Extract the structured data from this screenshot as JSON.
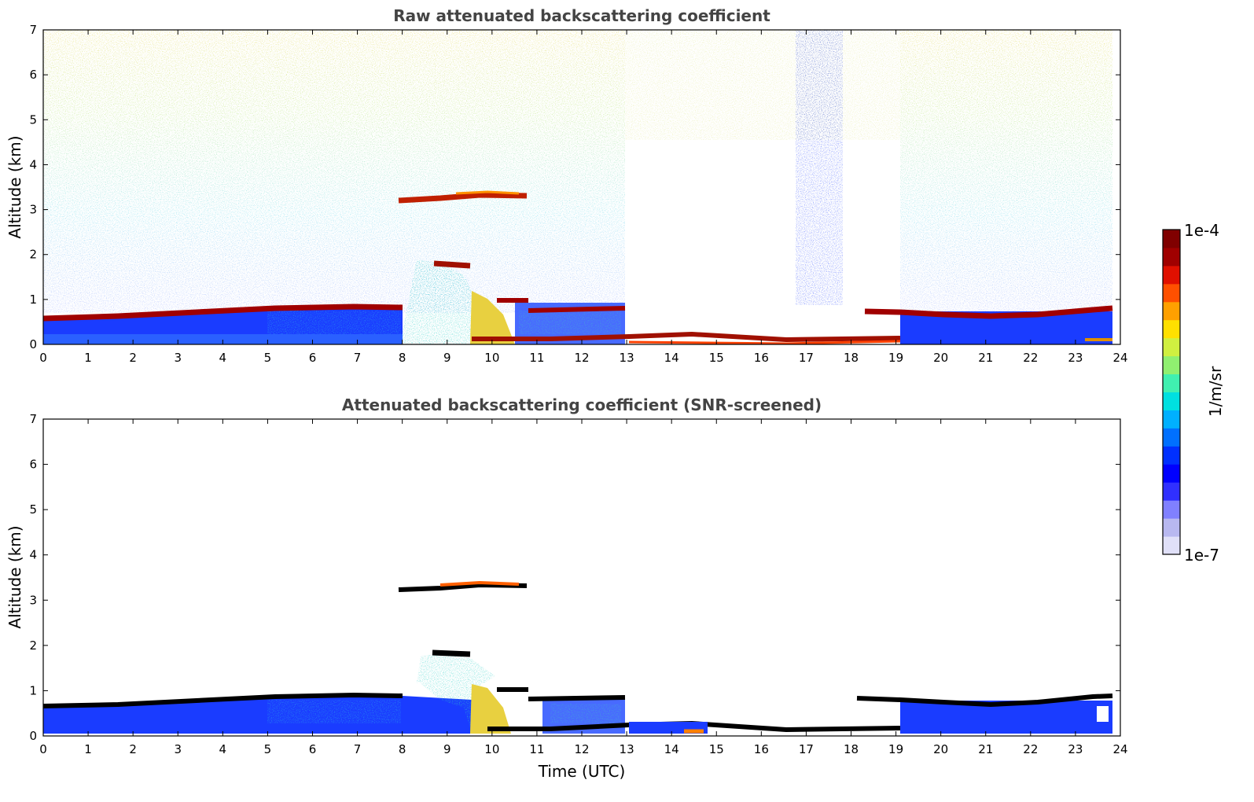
{
  "chart_data": [
    {
      "type": "heatmap",
      "title": "Raw attenuated backscattering coefficient",
      "xlabel": "",
      "ylabel": "Altitude (km)",
      "xlim": [
        0,
        24
      ],
      "ylim": [
        0,
        7
      ],
      "x_ticks": [
        "0",
        "1",
        "2",
        "3",
        "4",
        "5",
        "6",
        "7",
        "8",
        "9",
        "10",
        "11",
        "12",
        "13",
        "14",
        "15",
        "16",
        "17",
        "18",
        "19",
        "20",
        "21",
        "22",
        "23",
        "24"
      ],
      "y_ticks": [
        "0",
        "1",
        "2",
        "3",
        "4",
        "5",
        "6",
        "7"
      ],
      "features": [
        {
          "kind": "boundary_layer_top",
          "time": [
            0,
            8.0
          ],
          "alt_start": 0.62,
          "alt_end": 0.85
        },
        {
          "kind": "boundary_layer_top",
          "time": [
            19.0,
            23.8
          ],
          "alt_start": 0.75,
          "alt_end": 0.85
        },
        {
          "kind": "cloud_layer",
          "time": [
            7.9,
            10.8
          ],
          "alt": 3.25
        },
        {
          "kind": "cloud_layer",
          "time": [
            8.5,
            9.5
          ],
          "alt": 1.85
        },
        {
          "kind": "aerosol_plume",
          "time": [
            8.5,
            10.0
          ],
          "alt_top": 1.8
        },
        {
          "kind": "cloud_layer",
          "time": [
            10.0,
            12.9
          ],
          "alt": 0.9
        },
        {
          "kind": "low_layer",
          "time": [
            13.0,
            19.0
          ],
          "alt_start": 0.3,
          "alt_end": 0.15
        },
        {
          "kind": "noise_column",
          "time": [
            16.8,
            17.8
          ],
          "alt": [
            0.8,
            7.0
          ]
        }
      ]
    },
    {
      "type": "heatmap",
      "title": "Attenuated backscattering coefficient (SNR-screened)",
      "xlabel": "Time (UTC)",
      "ylabel": "Altitude (km)",
      "xlim": [
        0,
        24
      ],
      "ylim": [
        0,
        7
      ],
      "x_ticks": [
        "0",
        "1",
        "2",
        "3",
        "4",
        "5",
        "6",
        "7",
        "8",
        "9",
        "10",
        "11",
        "12",
        "13",
        "14",
        "15",
        "16",
        "17",
        "18",
        "19",
        "20",
        "21",
        "22",
        "23",
        "24"
      ],
      "y_ticks": [
        "0",
        "1",
        "2",
        "3",
        "4",
        "5",
        "6",
        "7"
      ]
    }
  ],
  "colorbar": {
    "max_label": "1e-4",
    "min_label": "1e-7",
    "label": "1/m/sr",
    "colors": [
      "#e0e0f8",
      "#b8b8f0",
      "#8080ff",
      "#3030ff",
      "#0000ff",
      "#0030ff",
      "#0070ff",
      "#00b0ff",
      "#00e0e0",
      "#40f0b0",
      "#90f070",
      "#d0f040",
      "#ffe000",
      "#ffa000",
      "#ff5000",
      "#e01000",
      "#a00000",
      "#800000"
    ]
  }
}
